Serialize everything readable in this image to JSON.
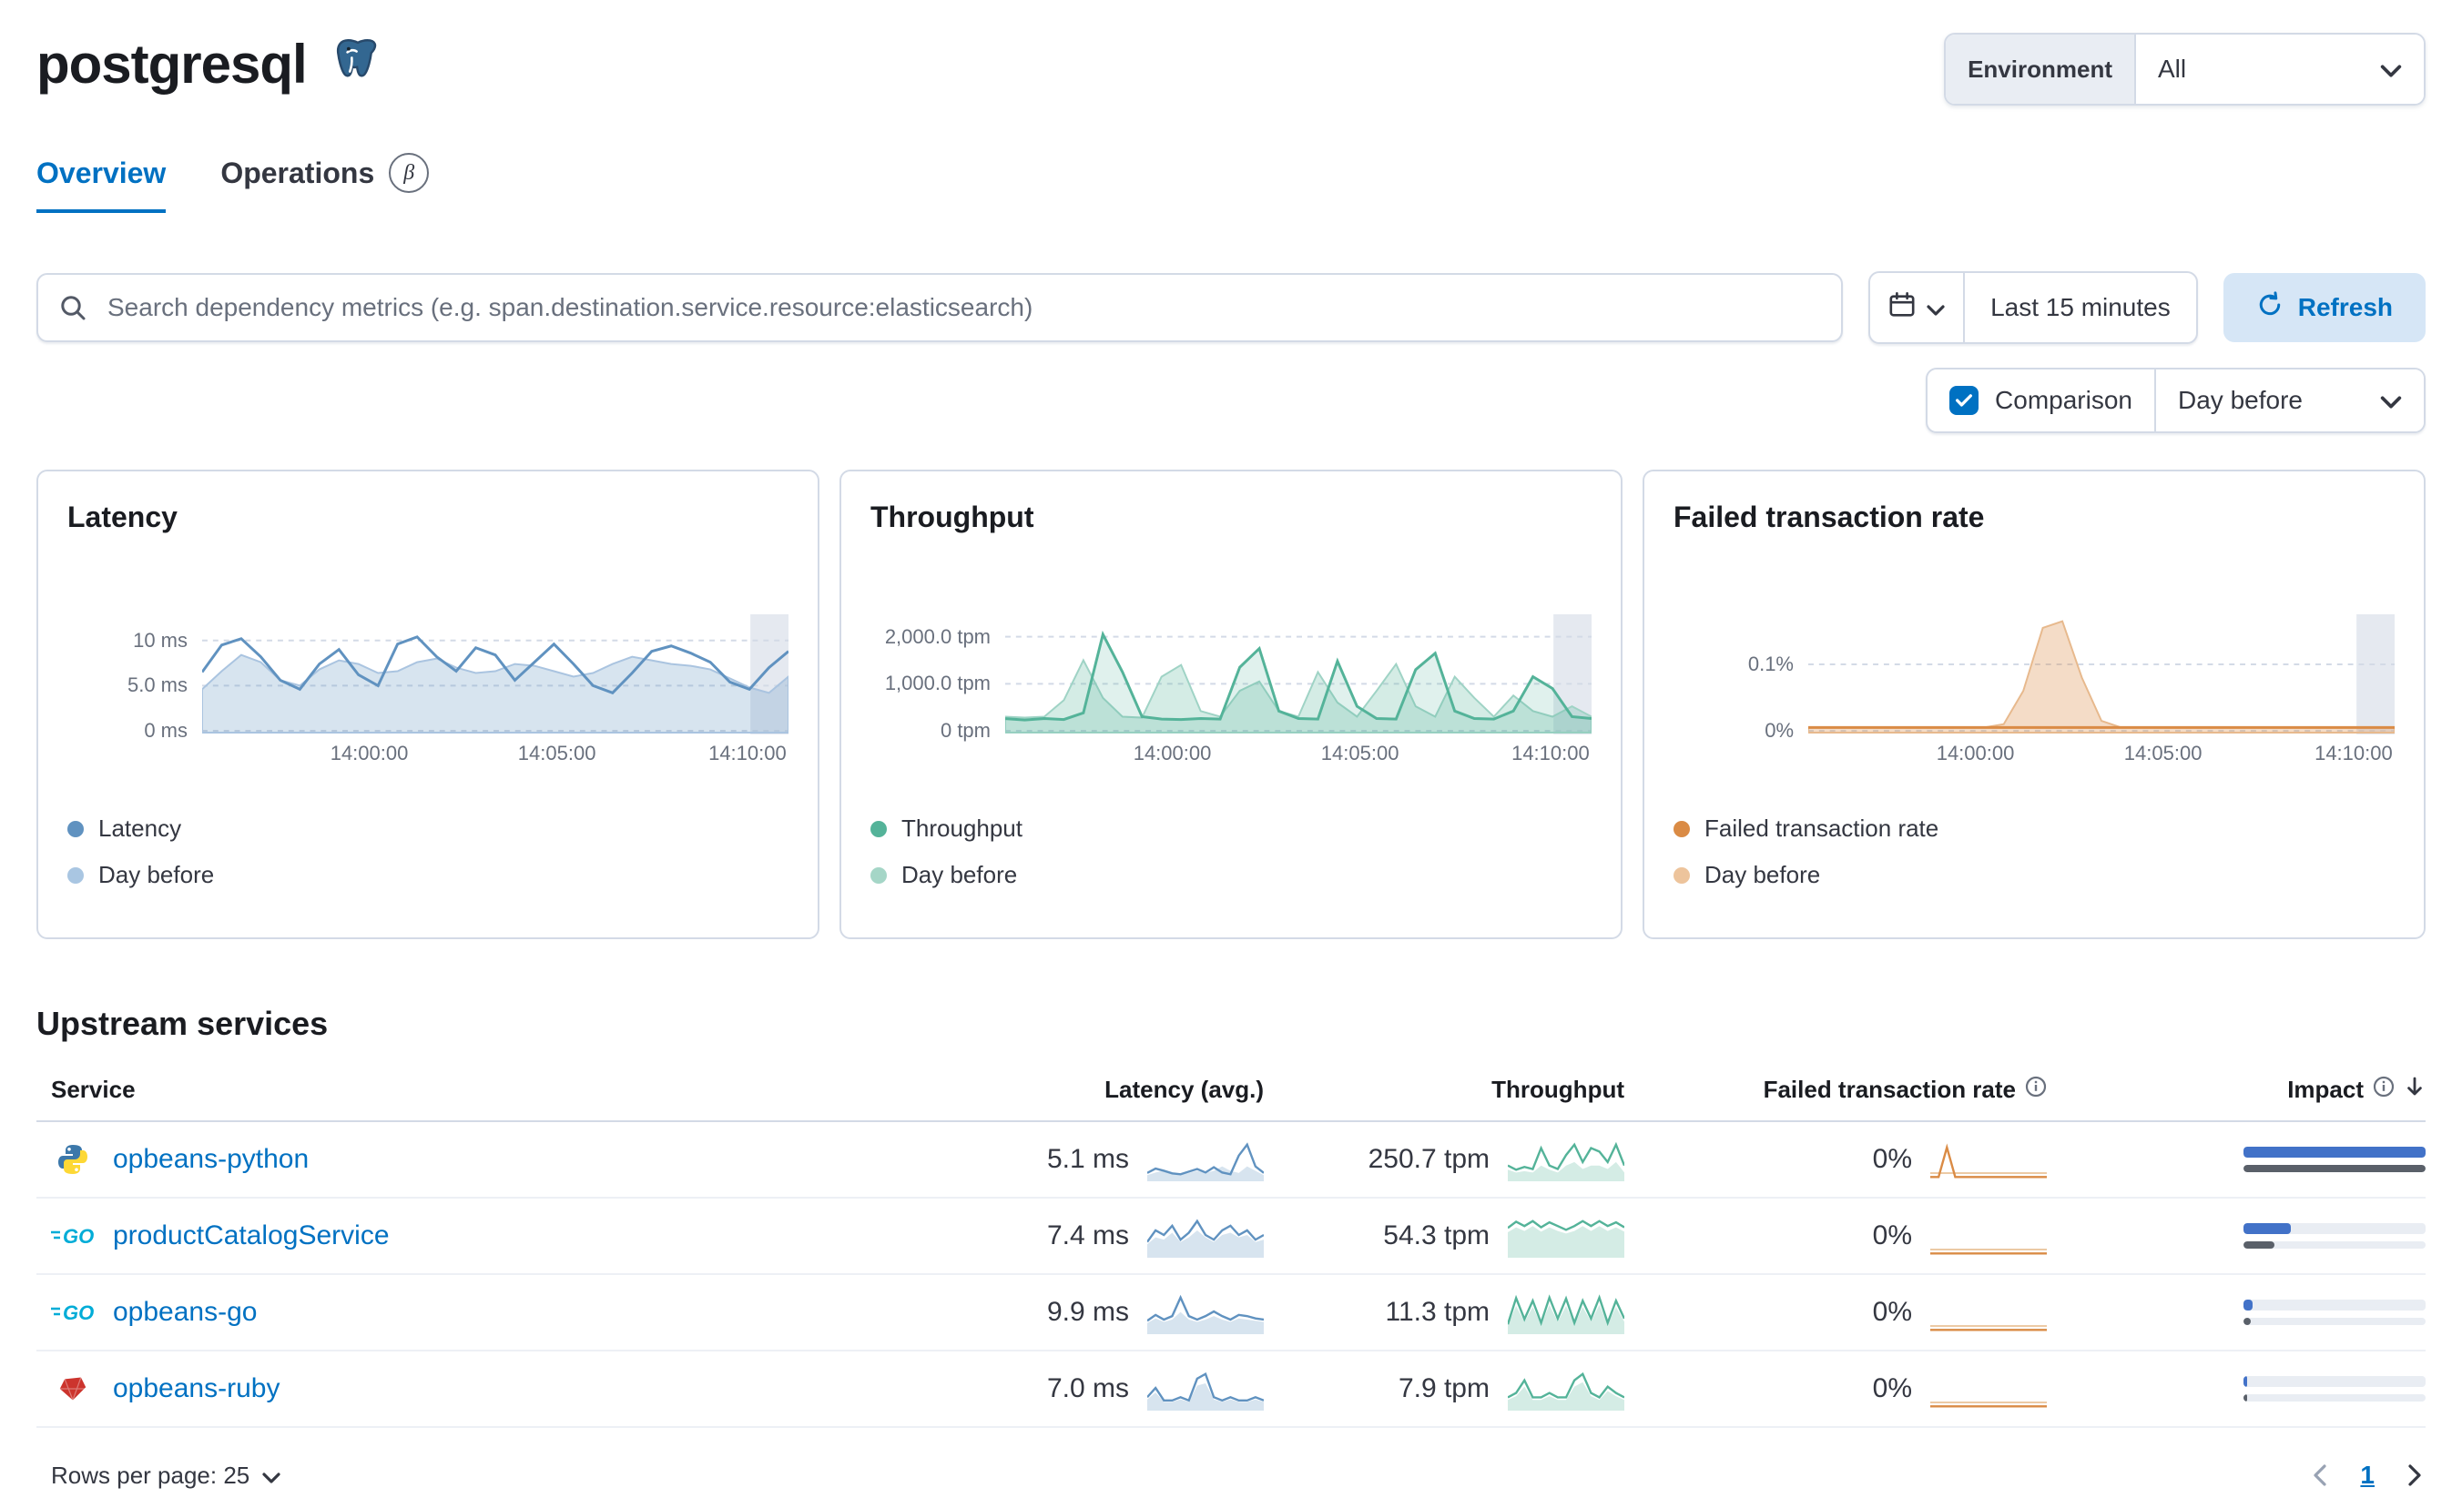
{
  "header": {
    "title": "postgresql",
    "environment_label": "Environment",
    "environment_value": "All"
  },
  "tabs": [
    {
      "label": "Overview"
    },
    {
      "label": "Operations",
      "beta": "β"
    }
  ],
  "search": {
    "placeholder": "Search dependency metrics (e.g. span.destination.service.resource:elasticsearch)",
    "time_range": "Last 15 minutes",
    "refresh_label": "Refresh"
  },
  "comparison": {
    "label": "Comparison",
    "value": "Day before"
  },
  "colors": {
    "accent": "#0071c2",
    "latency": "#6092C0",
    "throughput": "#54B399",
    "failed_rate": "#DA8B45",
    "impact_bar": "#4272c8",
    "impact_prev_bar": "#5a6069"
  },
  "charts": [
    {
      "title": "Latency",
      "color": "#6092C0",
      "fill": "rgba(96,146,192,0.25)",
      "light": "#aac4e0",
      "ymax": 12.5,
      "ticks": [
        {
          "v": 10,
          "label": "10 ms"
        },
        {
          "v": 5,
          "label": "5.0 ms"
        },
        {
          "v": 0,
          "label": "0 ms"
        }
      ],
      "x_ticks": [
        {
          "pos": 0.285,
          "label": "14:00:00"
        },
        {
          "pos": 0.605,
          "label": "14:05:00"
        },
        {
          "pos": 0.93,
          "label": "14:10:00"
        }
      ],
      "band": [
        0.935,
        1
      ],
      "legend": [
        {
          "label": "Latency",
          "color": "#6092C0"
        },
        {
          "label": "Day before",
          "color": "#a9c6e2"
        }
      ],
      "current": [
        6.5,
        9.5,
        10.2,
        8.2,
        5.6,
        4.6,
        7.4,
        9.0,
        6.2,
        5.0,
        9.6,
        10.4,
        8.2,
        6.6,
        9.2,
        8.4,
        5.6,
        7.6,
        9.6,
        7.4,
        5.0,
        4.2,
        6.4,
        8.8,
        9.4,
        8.6,
        7.6,
        5.4,
        4.6,
        7.0,
        8.8
      ],
      "previous": [
        4.6,
        6.6,
        8.4,
        7.6,
        5.6,
        5.0,
        6.8,
        7.8,
        7.4,
        6.4,
        6.6,
        7.6,
        8.0,
        7.0,
        6.4,
        6.6,
        7.4,
        7.2,
        6.6,
        6.0,
        6.4,
        7.4,
        8.2,
        7.8,
        7.4,
        7.2,
        6.8,
        5.8,
        4.8,
        4.2,
        6.0
      ]
    },
    {
      "title": "Throughput",
      "color": "#54B399",
      "fill": "rgba(84,179,153,0.25)",
      "light": "#9fd3c5",
      "cur_fill": "rgba(84,179,153,0.18)",
      "ymax": 2400,
      "ticks": [
        {
          "v": 2000,
          "label": "2,000.0 tpm"
        },
        {
          "v": 1000,
          "label": "1,000.0 tpm"
        },
        {
          "v": 0,
          "label": "0 tpm"
        }
      ],
      "x_ticks": [
        {
          "pos": 0.285,
          "label": "14:00:00"
        },
        {
          "pos": 0.605,
          "label": "14:05:00"
        },
        {
          "pos": 0.93,
          "label": "14:10:00"
        }
      ],
      "band": [
        0.935,
        1
      ],
      "legend": [
        {
          "label": "Throughput",
          "color": "#54B399"
        },
        {
          "label": "Day before",
          "color": "#a5d6c7"
        }
      ],
      "current": [
        260,
        230,
        260,
        240,
        380,
        2050,
        1250,
        300,
        250,
        240,
        260,
        250,
        1350,
        1750,
        420,
        260,
        250,
        1480,
        520,
        260,
        250,
        1300,
        1650,
        420,
        260,
        250,
        420,
        1150,
        900,
        300,
        260
      ],
      "previous": [
        300,
        280,
        300,
        650,
        1500,
        700,
        300,
        280,
        1150,
        1400,
        420,
        300,
        850,
        1050,
        420,
        300,
        1250,
        600,
        300,
        850,
        1420,
        520,
        300,
        1150,
        700,
        300,
        750,
        420,
        300,
        520,
        300
      ]
    },
    {
      "title": "Failed transaction rate",
      "color": "#DA8B45",
      "fill": "rgba(218,139,69,0.3)",
      "light": "#e7b98d",
      "ymax": 0.17,
      "ticks": [
        {
          "v": 0.1,
          "label": "0.1%"
        },
        {
          "v": 0,
          "label": "0%"
        }
      ],
      "x_ticks": [
        {
          "pos": 0.285,
          "label": "14:00:00"
        },
        {
          "pos": 0.605,
          "label": "14:05:00"
        },
        {
          "pos": 0.93,
          "label": "14:10:00"
        }
      ],
      "band": [
        0.935,
        1
      ],
      "legend": [
        {
          "label": "Failed transaction rate",
          "color": "#DA8B45"
        },
        {
          "label": "Day before",
          "color": "#edc49c"
        }
      ],
      "current": [
        0.005,
        0.005,
        0.005,
        0.005,
        0.005,
        0.005,
        0.005,
        0.005,
        0.005,
        0.005,
        0.005,
        0.005,
        0.005,
        0.005,
        0.005,
        0.005,
        0.005,
        0.005,
        0.005,
        0.005,
        0.005,
        0.005,
        0.005,
        0.005,
        0.005,
        0.005,
        0.005,
        0.005,
        0.005,
        0.005,
        0.005
      ],
      "previous": [
        0.005,
        0.005,
        0.005,
        0.005,
        0.005,
        0.005,
        0.005,
        0.005,
        0.005,
        0.005,
        0.01,
        0.06,
        0.155,
        0.165,
        0.08,
        0.015,
        0.005,
        0.005,
        0.005,
        0.005,
        0.005,
        0.005,
        0.005,
        0.005,
        0.005,
        0.005,
        0.005,
        0.005,
        0.005,
        0.005,
        0.005
      ]
    }
  ],
  "table": {
    "section_title": "Upstream services",
    "columns": [
      {
        "label": "Service"
      },
      {
        "label": "Latency (avg.)"
      },
      {
        "label": "Throughput"
      },
      {
        "label": "Failed transaction rate",
        "info": true
      },
      {
        "label": "Impact",
        "info": true,
        "sort": "desc"
      }
    ],
    "rows": [
      {
        "icon": "python",
        "service": "opbeans-python",
        "latency": "5.1 ms",
        "throughput": "250.7 tpm",
        "failed_rate": "0%",
        "impact": {
          "cur": 100,
          "prev": 100
        },
        "latency_spark": {
          "color": "#6092C0",
          "fill": "rgba(96,146,192,0.25)",
          "cur": [
            1.5,
            2.5,
            2,
            1.4,
            1.2,
            1.8,
            2.4,
            1.6,
            2.8,
            1.6,
            1.2,
            5.5,
            8,
            3,
            1.5
          ],
          "prev": [
            1,
            1.6,
            2,
            1.4,
            1,
            1.5,
            2,
            1.5,
            2,
            3,
            2,
            1.5,
            3,
            2,
            1
          ]
        },
        "throughput_spark": {
          "color": "#54B399",
          "fill": "rgba(84,179,153,0.25)",
          "cur": [
            2,
            1.4,
            1.8,
            1.5,
            4.5,
            2,
            1.5,
            3.5,
            5,
            2.5,
            4.5,
            4,
            2.5,
            5,
            2
          ],
          "prev": [
            1.4,
            1,
            1.2,
            1,
            2,
            1.4,
            1,
            2,
            2.5,
            1.5,
            2,
            2,
            1.5,
            2.5,
            1
          ]
        },
        "failed_spark": {
          "color": "#DA8B45",
          "light": "#eccaa5",
          "ymax": 5,
          "cur": [
            0.3,
            0.3,
            4,
            0.3,
            0.3,
            0.3,
            0.3,
            0.3,
            0.3,
            0.3,
            0.3,
            0.3,
            0.3,
            0.3,
            0.3
          ],
          "prev": [
            0.8,
            0.8,
            0.8,
            0.8,
            0.8,
            0.8,
            0.8,
            0.8,
            0.8,
            0.8,
            0.8,
            0.8,
            0.8,
            0.8,
            0.8
          ]
        }
      },
      {
        "icon": "go",
        "service": "productCatalogService",
        "latency": "7.4 ms",
        "throughput": "54.3 tpm",
        "failed_rate": "0%",
        "impact": {
          "cur": 26,
          "prev": 17
        },
        "latency_spark": {
          "color": "#6092C0",
          "fill": "rgba(96,146,192,0.25)",
          "cur": [
            3,
            5.5,
            4.5,
            6.5,
            3.5,
            5,
            7.5,
            4.5,
            3.5,
            5.5,
            6.5,
            4.5,
            5.5,
            3.5,
            4.5
          ],
          "prev": [
            2.5,
            4,
            3.5,
            5,
            3,
            4,
            5.5,
            4,
            3,
            4.5,
            5,
            4,
            4.5,
            3,
            3.5
          ]
        },
        "throughput_spark": {
          "color": "#54B399",
          "fill": "rgba(84,179,153,0.25)",
          "cur": [
            4.5,
            5.5,
            4.8,
            5.6,
            4.6,
            5.4,
            4.8,
            4.2,
            4.8,
            5.6,
            4.8,
            5.6,
            4.8,
            5.4,
            4.6
          ],
          "prev": [
            3.8,
            4.6,
            4,
            4.8,
            3.9,
            4.6,
            4,
            3.6,
            4,
            4.8,
            4,
            4.8,
            4,
            4.6,
            3.9
          ]
        },
        "failed_spark": {
          "color": "#DA8B45",
          "light": "#eccaa5",
          "ymax": 5,
          "cur": [
            0.3,
            0.3,
            0.3,
            0.3,
            0.3,
            0.3,
            0.3,
            0.3,
            0.3,
            0.3,
            0.3,
            0.3,
            0.3,
            0.3,
            0.3
          ],
          "prev": [
            0.8,
            0.8,
            0.8,
            0.8,
            0.8,
            0.8,
            0.8,
            0.8,
            0.8,
            0.8,
            0.8,
            0.8,
            0.8,
            0.8,
            0.8
          ]
        }
      },
      {
        "icon": "go",
        "service": "opbeans-go",
        "latency": "9.9 ms",
        "throughput": "11.3 tpm",
        "failed_rate": "0%",
        "impact": {
          "cur": 5,
          "prev": 4
        },
        "latency_spark": {
          "color": "#6092C0",
          "fill": "rgba(96,146,192,0.25)",
          "cur": [
            2,
            3,
            2.2,
            2.8,
            6,
            2.8,
            2.2,
            2.8,
            3.6,
            2.8,
            2.2,
            3,
            2.8,
            2.4,
            2.2
          ],
          "prev": [
            1.6,
            2.4,
            1.8,
            2.2,
            3.5,
            2.2,
            1.8,
            2.2,
            2.8,
            2.2,
            1.8,
            2.4,
            2.2,
            2,
            1.8
          ]
        },
        "throughput_spark": {
          "color": "#54B399",
          "fill": "rgba(84,179,153,0.25)",
          "cur": [
            1.5,
            6.5,
            2.5,
            6,
            1.8,
            6.6,
            2.6,
            6.4,
            1.8,
            6,
            2.6,
            6.6,
            1.8,
            6,
            2.6
          ],
          "prev": [
            1.2,
            5,
            2,
            4.8,
            1.5,
            5.2,
            2,
            5,
            1.5,
            4.8,
            2,
            5.2,
            1.5,
            4.8,
            2
          ]
        },
        "failed_spark": {
          "color": "#DA8B45",
          "light": "#eccaa5",
          "ymax": 5,
          "cur": [
            0.3,
            0.3,
            0.3,
            0.3,
            0.3,
            0.3,
            0.3,
            0.3,
            0.3,
            0.3,
            0.3,
            0.3,
            0.3,
            0.3,
            0.3
          ],
          "prev": [
            0.8,
            0.8,
            0.8,
            0.8,
            0.8,
            0.8,
            0.8,
            0.8,
            0.8,
            0.8,
            0.8,
            0.8,
            0.8,
            0.8,
            0.8
          ]
        }
      },
      {
        "icon": "ruby",
        "service": "opbeans-ruby",
        "latency": "7.0 ms",
        "throughput": "7.9 tpm",
        "failed_rate": "0%",
        "impact": {
          "cur": 2,
          "prev": 2
        },
        "latency_spark": {
          "color": "#6092C0",
          "fill": "rgba(96,146,192,0.25)",
          "cur": [
            2.5,
            4.5,
            1.8,
            1.8,
            2.5,
            1.8,
            6.5,
            7.5,
            2.5,
            1.8,
            2.5,
            1.8,
            1.8,
            2.5,
            1.8
          ],
          "prev": [
            2,
            3.5,
            1.5,
            1.5,
            2,
            1.5,
            5,
            5.5,
            2,
            1.5,
            2,
            1.5,
            1.5,
            2,
            1.5
          ]
        },
        "throughput_spark": {
          "color": "#54B399",
          "fill": "rgba(84,179,153,0.25)",
          "cur": [
            1.8,
            2.5,
            4.5,
            1.8,
            1.8,
            2.5,
            1.8,
            1.8,
            4.5,
            5.5,
            2.5,
            1.8,
            3.5,
            2.5,
            1.8
          ],
          "prev": [
            1.4,
            2,
            3.5,
            1.4,
            1.4,
            2,
            1.4,
            1.4,
            3.5,
            4.2,
            2,
            1.4,
            2.8,
            2,
            1.4
          ]
        },
        "failed_spark": {
          "color": "#DA8B45",
          "light": "#eccaa5",
          "ymax": 5,
          "cur": [
            0.3,
            0.3,
            0.3,
            0.3,
            0.3,
            0.3,
            0.3,
            0.3,
            0.3,
            0.3,
            0.3,
            0.3,
            0.3,
            0.3,
            0.3
          ],
          "prev": [
            0.8,
            0.8,
            0.8,
            0.8,
            0.8,
            0.8,
            0.8,
            0.8,
            0.8,
            0.8,
            0.8,
            0.8,
            0.8,
            0.8,
            0.8
          ]
        }
      }
    ]
  },
  "footer": {
    "rows_per_page_label": "Rows per page: 25",
    "page": "1"
  }
}
